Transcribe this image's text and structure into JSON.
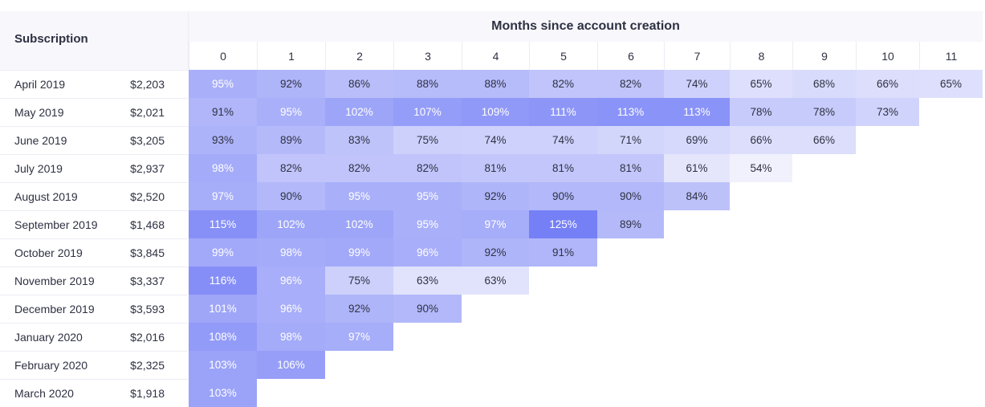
{
  "chart_data": {
    "type": "heatmap",
    "title": "Months since account creation",
    "row_header": "Subscription",
    "columns": [
      "0",
      "1",
      "2",
      "3",
      "4",
      "5",
      "6",
      "7",
      "8",
      "9",
      "10",
      "11"
    ],
    "rows": [
      {
        "label": "April 2019",
        "value": "$2,203",
        "cells": [
          "95%",
          "92%",
          "86%",
          "88%",
          "88%",
          "82%",
          "82%",
          "74%",
          "65%",
          "68%",
          "66%",
          "65%"
        ]
      },
      {
        "label": "May 2019",
        "value": "$2,021",
        "cells": [
          "91%",
          "95%",
          "102%",
          "107%",
          "109%",
          "111%",
          "113%",
          "113%",
          "78%",
          "78%",
          "73%"
        ]
      },
      {
        "label": "June 2019",
        "value": "$3,205",
        "cells": [
          "93%",
          "89%",
          "83%",
          "75%",
          "74%",
          "74%",
          "71%",
          "69%",
          "66%",
          "66%"
        ]
      },
      {
        "label": "July 2019",
        "value": "$2,937",
        "cells": [
          "98%",
          "82%",
          "82%",
          "82%",
          "81%",
          "81%",
          "81%",
          "61%",
          "54%"
        ]
      },
      {
        "label": "August 2019",
        "value": "$2,520",
        "cells": [
          "97%",
          "90%",
          "95%",
          "95%",
          "92%",
          "90%",
          "90%",
          "84%"
        ]
      },
      {
        "label": "September 2019",
        "value": "$1,468",
        "cells": [
          "115%",
          "102%",
          "102%",
          "95%",
          "97%",
          "125%",
          "89%"
        ]
      },
      {
        "label": "October 2019",
        "value": "$3,845",
        "cells": [
          "99%",
          "98%",
          "99%",
          "96%",
          "92%",
          "91%"
        ]
      },
      {
        "label": "November 2019",
        "value": "$3,337",
        "cells": [
          "116%",
          "96%",
          "75%",
          "63%",
          "63%"
        ]
      },
      {
        "label": "December 2019",
        "value": "$3,593",
        "cells": [
          "101%",
          "96%",
          "92%",
          "90%"
        ]
      },
      {
        "label": "January 2020",
        "value": "$2,016",
        "cells": [
          "108%",
          "98%",
          "97%"
        ]
      },
      {
        "label": "February 2020",
        "value": "$2,325",
        "cells": [
          "103%",
          "106%"
        ]
      },
      {
        "label": "March 2020",
        "value": "$1,918",
        "cells": [
          "103%"
        ]
      }
    ],
    "color_scale": {
      "low": "#f1f1fd",
      "high": "#7580f6",
      "min": 54,
      "max": 125
    }
  }
}
